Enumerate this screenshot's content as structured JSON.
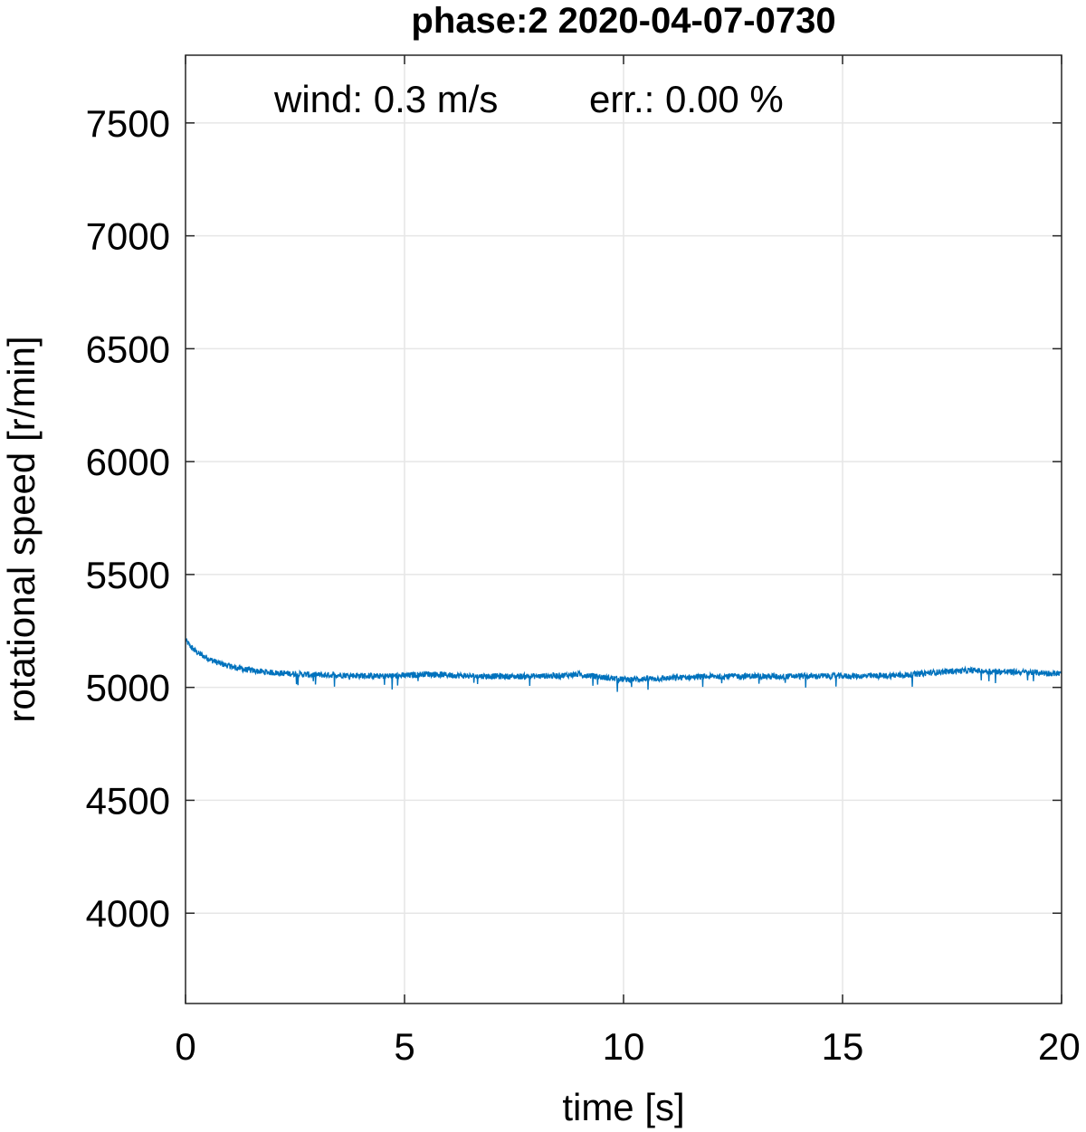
{
  "chart_data": {
    "type": "line",
    "title": "phase:2 2020-04-07-0730",
    "xlabel": "time [s]",
    "ylabel": "rotational speed [r/min]",
    "xlim": [
      0,
      20
    ],
    "ylim": [
      3600,
      7800
    ],
    "xticks": [
      0,
      5,
      10,
      15,
      20
    ],
    "yticks": [
      4000,
      4500,
      5000,
      5500,
      6000,
      6500,
      7000,
      7500
    ],
    "grid": true,
    "annotation": {
      "wind": "wind: 0.3 m/s",
      "err": "err.: 0.00 %"
    },
    "series": [
      {
        "color": "#0072BD",
        "x": [
          0,
          0.1,
          0.2,
          0.3,
          0.4,
          0.5,
          0.6,
          0.8,
          1.0,
          1.2,
          1.5,
          2.0,
          2.5,
          3.0,
          3.5,
          4.0,
          4.5,
          5.0,
          5.5,
          6.0,
          6.5,
          7.0,
          7.5,
          8.0,
          8.5,
          9.0,
          9.5,
          10.0,
          10.5,
          11.0,
          11.5,
          12.0,
          12.5,
          13.0,
          13.5,
          14.0,
          14.5,
          15.0,
          15.5,
          16.0,
          16.5,
          17.0,
          17.5,
          18.0,
          18.5,
          19.0,
          19.5,
          20.0
        ],
        "y": [
          5210,
          5185,
          5165,
          5150,
          5140,
          5130,
          5120,
          5105,
          5095,
          5085,
          5075,
          5065,
          5060,
          5055,
          5055,
          5052,
          5050,
          5052,
          5060,
          5055,
          5050,
          5050,
          5048,
          5050,
          5052,
          5058,
          5045,
          5035,
          5038,
          5040,
          5045,
          5048,
          5050,
          5050,
          5048,
          5050,
          5050,
          5050,
          5050,
          5052,
          5055,
          5065,
          5072,
          5075,
          5070,
          5068,
          5065,
          5060
        ]
      }
    ]
  }
}
